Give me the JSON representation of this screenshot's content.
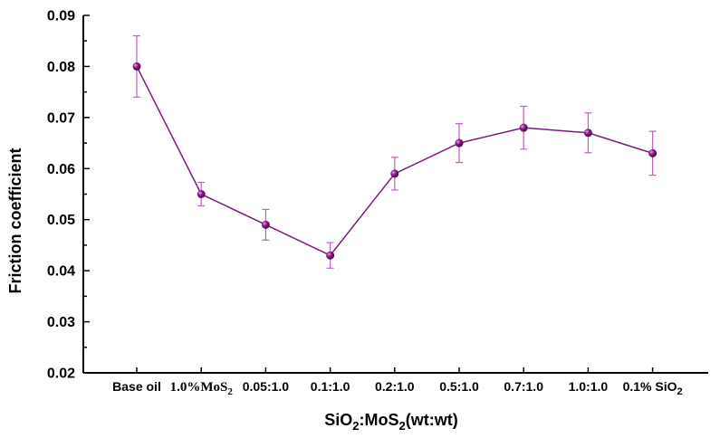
{
  "chart_data": {
    "type": "line",
    "title": "",
    "xlabel": {
      "main": "SiO",
      "sub1": "2",
      "middle": ":MoS",
      "sub2": "2",
      "suffix": "(wt:wt)"
    },
    "ylabel": "Friction coefficient",
    "ylim": [
      0.02,
      0.09
    ],
    "yticks": [
      "0.02",
      "0.03",
      "0.04",
      "0.05",
      "0.06",
      "0.07",
      "0.08",
      "0.09"
    ],
    "categories": [
      {
        "text": "Base oil",
        "sub": "",
        "style": "sans"
      },
      {
        "text": "1.0%MoS",
        "sub": "2",
        "style": "serif"
      },
      {
        "text": "0.05:1.0",
        "sub": "",
        "style": "sans"
      },
      {
        "text": "0.1:1.0",
        "sub": "",
        "style": "sans"
      },
      {
        "text": "0.2:1.0",
        "sub": "",
        "style": "sans"
      },
      {
        "text": "0.5:1.0",
        "sub": "",
        "style": "sans"
      },
      {
        "text": "0.7:1.0",
        "sub": "",
        "style": "sans"
      },
      {
        "text": "1.0:1.0",
        "sub": "",
        "style": "sans"
      },
      {
        "text": "0.1% SiO",
        "sub": "2",
        "style": "sans"
      }
    ],
    "series": [
      {
        "values": [
          0.08,
          0.055,
          0.049,
          0.043,
          0.059,
          0.065,
          0.068,
          0.067,
          0.063
        ],
        "error": [
          0.006,
          0.0023,
          0.003,
          0.0025,
          0.0032,
          0.0038,
          0.0042,
          0.0039,
          0.0043
        ],
        "color": "#7b1a7b",
        "error_color": "#c060c0",
        "marker_color": "#8a1a8a"
      }
    ],
    "grid": false,
    "legend": "none"
  }
}
